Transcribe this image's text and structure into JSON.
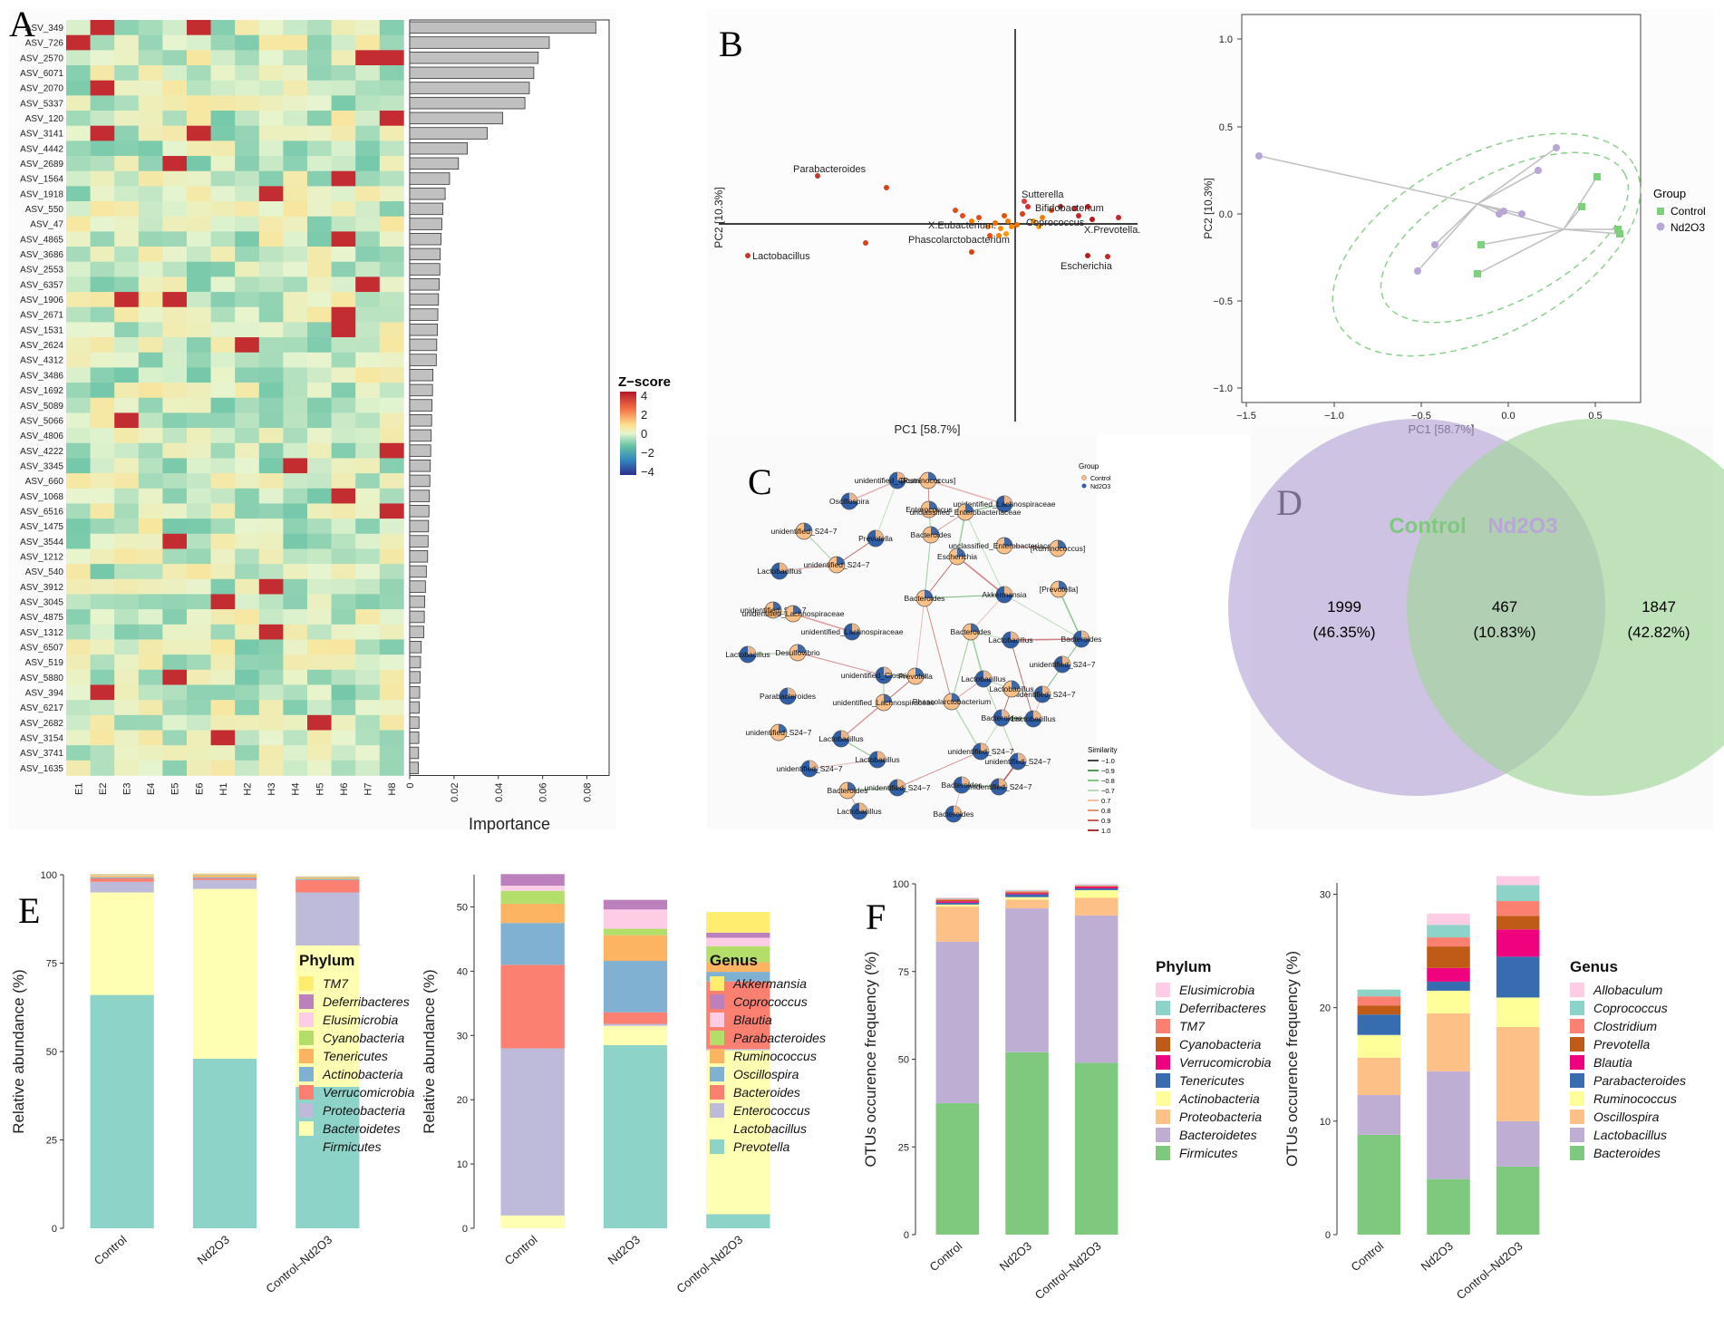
{
  "panels": {
    "A": "A",
    "B": "B",
    "C": "C",
    "D": "D",
    "E": "E",
    "F": "F"
  },
  "heatmap": {
    "rows": [
      "ASV_349",
      "ASV_726",
      "ASV_2570",
      "ASV_6071",
      "ASV_2070",
      "ASV_5337",
      "ASV_120",
      "ASV_3141",
      "ASV_4442",
      "ASV_2689",
      "ASV_1564",
      "ASV_1918",
      "ASV_550",
      "ASV_47",
      "ASV_4865",
      "ASV_3686",
      "ASV_2553",
      "ASV_6357",
      "ASV_1906",
      "ASV_2671",
      "ASV_1531",
      "ASV_2624",
      "ASV_4312",
      "ASV_3486",
      "ASV_1692",
      "ASV_5089",
      "ASV_5066",
      "ASV_4806",
      "ASV_4222",
      "ASV_3345",
      "ASV_660",
      "ASV_1068",
      "ASV_6516",
      "ASV_1475",
      "ASV_3544",
      "ASV_1212",
      "ASV_540",
      "ASV_3912",
      "ASV_3045",
      "ASV_4875",
      "ASV_1312",
      "ASV_6507",
      "ASV_519",
      "ASV_5880",
      "ASV_394",
      "ASV_6217",
      "ASV_2682",
      "ASV_3154",
      "ASV_3741",
      "ASV_1635"
    ],
    "cols": [
      "E1",
      "E2",
      "E3",
      "E4",
      "E5",
      "E6",
      "H1",
      "H2",
      "H3",
      "H4",
      "H5",
      "H6",
      "H7",
      "H8"
    ],
    "importance": [
      0.084,
      0.063,
      0.058,
      0.056,
      0.054,
      0.052,
      0.042,
      0.035,
      0.026,
      0.022,
      0.018,
      0.016,
      0.015,
      0.0145,
      0.0142,
      0.0138,
      0.0136,
      0.0133,
      0.013,
      0.0127,
      0.0125,
      0.0122,
      0.012,
      0.0105,
      0.0103,
      0.0101,
      0.0099,
      0.0097,
      0.0095,
      0.0093,
      0.0091,
      0.0089,
      0.0087,
      0.0085,
      0.0083,
      0.0081,
      0.0075,
      0.0071,
      0.0068,
      0.0066,
      0.0064,
      0.0052,
      0.0049,
      0.0047,
      0.0045,
      0.0043,
      0.0042,
      0.0041,
      0.004,
      0.0039
    ],
    "importance_label": "Importance",
    "importance_ticks": [
      "0",
      "0.02",
      "0.04",
      "0.06",
      "0.08"
    ],
    "zscore_label": "Z−score",
    "zscore_ticks": [
      "4",
      "2",
      "0",
      "−2",
      "−4"
    ]
  },
  "pca_biplot": {
    "xlabel": "PC1 [58.7%]",
    "ylabel": "PC2 [10.3%]",
    "labels": [
      "Parabacteroides",
      "Lactobacillus",
      "Sutterella",
      "Bifidobacterium",
      "X.Eubacterium.",
      "Coprococcus",
      "X.Prevotella.",
      "Phascolarctobacterium",
      "Escherichia"
    ]
  },
  "pca_scores": {
    "xlabel": "PC1 [58.7%]",
    "ylabel": "PC2 [10.3%]",
    "xticks": [
      "−1.5",
      "−1.0",
      "−0.5",
      "0.0",
      "0.5"
    ],
    "yticks": [
      "1.0",
      "0.5",
      "0.0",
      "−0.5",
      "−1.0"
    ],
    "legend_title": "Group",
    "groups": [
      "Control",
      "Nd2O3"
    ],
    "colors": {
      "Control": "#7dd17d",
      "Nd2O3": "#b9a6d6"
    }
  },
  "network": {
    "legend_title": "Group",
    "groups": [
      "Control",
      "Nd2O3"
    ],
    "similarity_title": "Similarity",
    "similarity_levels": [
      "−1.0",
      "−0.9",
      "−0.8",
      "−0.7",
      "0.7",
      "0.8",
      "0.9",
      "1.0"
    ],
    "nodes": [
      "unidentified_Clostridiales",
      "[Ruminococcus]",
      "unidentified_Lachnospiraceae",
      "Oscillospira",
      "Enterococcus",
      "unidentified_S24−7",
      "Prevotella",
      "Bacteroides",
      "unclassified_Enterobacteriaceae",
      "[Prevotella]",
      "Escherichia",
      "Lactobacillus",
      "Akkermansia",
      "Desulfovibrio",
      "Parabacteroides",
      "Phascolarctobacterium"
    ]
  },
  "venn": {
    "labels": [
      "Control",
      "Nd2O3"
    ],
    "left": {
      "count": "1999",
      "pct": "(46.35%)"
    },
    "middle": {
      "count": "467",
      "pct": "(10.83%)"
    },
    "right": {
      "count": "1847",
      "pct": "(42.82%)"
    }
  },
  "chart_data": [
    {
      "type": "bar",
      "panel": "E",
      "title": "",
      "xlabel": "",
      "ylabel": "Relative abundance (%)",
      "ylim": [
        0,
        100
      ],
      "yticks": [
        "0",
        "25",
        "50",
        "75",
        "100"
      ],
      "categories": [
        "Control",
        "Nd2O3",
        "Control–Nd2O3"
      ],
      "legend_title": "Phylum",
      "series": [
        {
          "name": "Firmicutes",
          "color": "#8dd3c7",
          "values": [
            66,
            48,
            40
          ]
        },
        {
          "name": "Bacteroidetes",
          "color": "#ffffb3",
          "values": [
            29,
            48,
            40
          ]
        },
        {
          "name": "Proteobacteria",
          "color": "#bebada",
          "values": [
            3,
            2.5,
            15
          ]
        },
        {
          "name": "Verrucomicrobia",
          "color": "#fb8072",
          "values": [
            1,
            0.5,
            3.5
          ]
        },
        {
          "name": "Actinobacteria",
          "color": "#80b1d3",
          "values": [
            0.3,
            0.3,
            0.3
          ]
        },
        {
          "name": "Tenericutes",
          "color": "#fdb462",
          "values": [
            0.4,
            0.6,
            0.3
          ]
        },
        {
          "name": "Cyanobacteria",
          "color": "#b3de69",
          "values": [
            0.2,
            0.2,
            0.2
          ]
        },
        {
          "name": "Elusimicrobia",
          "color": "#fccde5",
          "values": [
            0.1,
            0.1,
            0.1
          ]
        },
        {
          "name": "Deferribacteres",
          "color": "#bc80bd",
          "values": [
            0.1,
            0.1,
            0.1
          ]
        },
        {
          "name": "TM7",
          "color": "#ffed6f",
          "values": [
            0.1,
            0.1,
            0.1
          ]
        }
      ]
    },
    {
      "type": "bar",
      "panel": "E",
      "title": "",
      "xlabel": "",
      "ylabel": "Relative abundance (%)",
      "ylim": [
        0,
        55
      ],
      "yticks": [
        "0",
        "10",
        "20",
        "30",
        "40",
        "50"
      ],
      "categories": [
        "Control",
        "Nd2O3",
        "Control–Nd2O3"
      ],
      "legend_title": "Genus",
      "series": [
        {
          "name": "Prevotella",
          "color": "#8dd3c7",
          "values": [
            0,
            28.5,
            2.2
          ]
        },
        {
          "name": "Lactobacillus",
          "color": "#ffffb3",
          "values": [
            2,
            3,
            25.5
          ]
        },
        {
          "name": "Enterococcus",
          "color": "#bebada",
          "values": [
            26,
            0.3,
            0.2
          ]
        },
        {
          "name": "Bacteroides",
          "color": "#fb8072",
          "values": [
            13,
            1.8,
            10.5
          ]
        },
        {
          "name": "Oscillospira",
          "color": "#80b1d3",
          "values": [
            6.5,
            8,
            1.5
          ]
        },
        {
          "name": "Ruminococcus",
          "color": "#fdb462",
          "values": [
            3,
            4,
            1.5
          ]
        },
        {
          "name": "Parabacteroides",
          "color": "#b3de69",
          "values": [
            2,
            1,
            2.5
          ]
        },
        {
          "name": "Blautia",
          "color": "#fccde5",
          "values": [
            0.8,
            3,
            1.3
          ]
        },
        {
          "name": "Coprococcus",
          "color": "#bc80bd",
          "values": [
            1.8,
            1.5,
            0.8
          ]
        },
        {
          "name": "Akkermansia",
          "color": "#ffed6f",
          "values": [
            0,
            0,
            3.2
          ]
        }
      ]
    },
    {
      "type": "bar",
      "panel": "F",
      "title": "",
      "xlabel": "",
      "ylabel": "OTUs occurence frequency (%)",
      "ylim": [
        0,
        100
      ],
      "yticks": [
        "0",
        "25",
        "50",
        "75",
        "100"
      ],
      "categories": [
        "Control",
        "Nd2O3",
        "Control–Nd2O3"
      ],
      "legend_title": "Phylum",
      "series": [
        {
          "name": "Firmicutes",
          "color": "#7fc97f",
          "values": [
            37.5,
            52,
            49
          ]
        },
        {
          "name": "Bacteroidetes",
          "color": "#beaed4",
          "values": [
            46,
            41,
            42
          ]
        },
        {
          "name": "Proteobacteria",
          "color": "#fdc086",
          "values": [
            10,
            2.5,
            5
          ]
        },
        {
          "name": "Actinobacteria",
          "color": "#ffff99",
          "values": [
            0.6,
            0.7,
            2.2
          ]
        },
        {
          "name": "Tenericutes",
          "color": "#386cb0",
          "values": [
            0.5,
            0.8,
            0.5
          ]
        },
        {
          "name": "Verrucomicrobia",
          "color": "#f0027f",
          "values": [
            0.4,
            0.3,
            0.4
          ]
        },
        {
          "name": "Cyanobacteria",
          "color": "#bf5b17",
          "values": [
            0.4,
            0.3,
            0.2
          ]
        },
        {
          "name": "TM7",
          "color": "#fb8072",
          "values": [
            0.3,
            0.3,
            0.2
          ]
        },
        {
          "name": "Deferribacteres",
          "color": "#8dd3c7",
          "values": [
            0.2,
            0.2,
            0.2
          ]
        },
        {
          "name": "Elusimicrobia",
          "color": "#fccde5",
          "values": [
            0.2,
            0.2,
            0.3
          ]
        }
      ]
    },
    {
      "type": "bar",
      "panel": "F",
      "title": "",
      "xlabel": "",
      "ylabel": "OTUs occurence frequency (%)",
      "ylim": [
        0,
        31
      ],
      "yticks": [
        "0",
        "10",
        "20",
        "30"
      ],
      "categories": [
        "Control",
        "Nd2O3",
        "Control–Nd2O3"
      ],
      "legend_title": "Genus",
      "series": [
        {
          "name": "Bacteroides",
          "color": "#7fc97f",
          "values": [
            8.8,
            4.9,
            6.0
          ]
        },
        {
          "name": "Lactobacillus",
          "color": "#beaed4",
          "values": [
            3.5,
            9.5,
            4.0
          ]
        },
        {
          "name": "Oscillospira",
          "color": "#fdc086",
          "values": [
            3.3,
            5.1,
            8.3
          ]
        },
        {
          "name": "Ruminococcus",
          "color": "#ffff99",
          "values": [
            2.0,
            2.0,
            2.6
          ]
        },
        {
          "name": "Parabacteroides",
          "color": "#386cb0",
          "values": [
            1.8,
            0.8,
            3.6
          ]
        },
        {
          "name": "Blautia",
          "color": "#f0027f",
          "values": [
            0,
            1.2,
            2.4
          ]
        },
        {
          "name": "Prevotella",
          "color": "#bf5b17",
          "values": [
            0.8,
            1.9,
            1.2
          ]
        },
        {
          "name": "Clostridium",
          "color": "#fb8072",
          "values": [
            0.8,
            0.8,
            1.3
          ]
        },
        {
          "name": "Coprococcus",
          "color": "#8dd3c7",
          "values": [
            0.6,
            1.1,
            1.4
          ]
        },
        {
          "name": "Allobaculum",
          "color": "#fccde5",
          "values": [
            0,
            1.0,
            0.8
          ]
        }
      ]
    }
  ]
}
